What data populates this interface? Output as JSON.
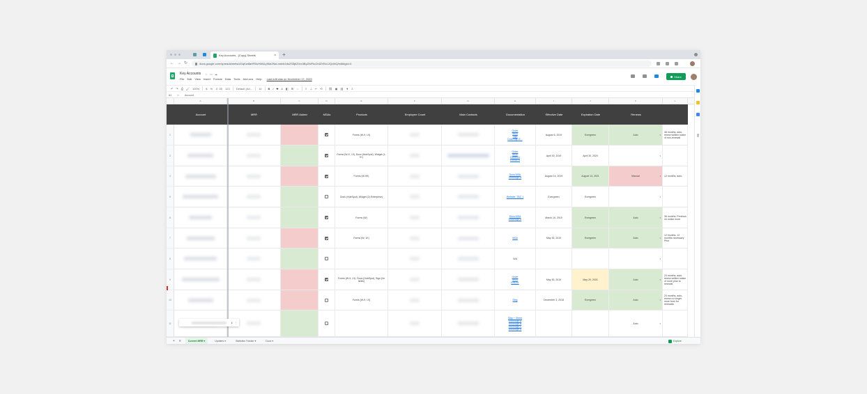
{
  "browser": {
    "tab_title": "Key Accounts - [Copy] Sheets",
    "tab_close": "×",
    "new_tab": "+",
    "url": "docs.google.com/spreadsheets/d/1qKw8aHR0cHM6Ly9kb2NzLmdvb2dsZS5jb20vc3ByZWFkc2hlZXRzL2QvMQ/edit#gid=0"
  },
  "sheets": {
    "title": "Key Accounts",
    "menus": [
      "File",
      "Edit",
      "View",
      "Insert",
      "Format",
      "Data",
      "Tools",
      "Add-ons",
      "Help"
    ],
    "last_edit": "Last edit was on November 17, 2020",
    "share_label": "Share"
  },
  "toolbar": {
    "zoom": "100%",
    "currency": "$",
    "percent": "%",
    "decimals": ".0  .00",
    "format": "123",
    "font": "Default (Ari...",
    "font_size": "10",
    "bold": "B",
    "italic": "I",
    "strike": "S",
    "text_color": "A"
  },
  "formula_bar": {
    "cell_ref": "A1",
    "fx": "fx",
    "value": "Account"
  },
  "columns": [
    "A",
    "B",
    "C",
    "D",
    "E",
    "F",
    "G",
    "H",
    "I",
    "J",
    "K",
    "L"
  ],
  "headers": [
    "Account",
    "MRR",
    "MRR Added",
    "MSAs",
    "Products",
    "Employee Count",
    "Main Contacts",
    "Documentation",
    "Effective Date",
    "Expiration Date",
    "Renews",
    ""
  ],
  "rows": [
    {
      "num": "2",
      "msa": true,
      "products": "Forms (W-9, I-9)",
      "docs": [
        "Order",
        "MSA",
        "Sign",
        "DocuSign E..."
      ],
      "effective": "August 6, 2019",
      "expiration": "Evergreen",
      "renews": "Auto",
      "notes": "36 months, auto-renew written notice of non-renewal"
    },
    {
      "num": "3",
      "msa": true,
      "products": "Forms (W-9, I-9), Docs (HubSpot), Widget (1-9+)",
      "docs": [
        "Order",
        "MSA",
        "Exhibit A",
        "Exhibit B"
      ],
      "effective": "April 30, 2019",
      "expiration": "April 30, 2020",
      "renews": "",
      "notes": ""
    },
    {
      "num": "4",
      "msa": true,
      "products": "Forms (W-9K)",
      "docs": [
        "Docs MSA",
        "DocuSign A"
      ],
      "effective": "August 14, 2019",
      "expiration": "August 13, 2021",
      "renews": "Manual",
      "notes": "12 months, auto-"
    },
    {
      "num": "5",
      "msa": false,
      "products": "Docs (HubSpot), Widget (2) Enterprise)",
      "docs": [
        "Website, TBC 1"
      ],
      "effective": "Evergreen",
      "expiration": "Evergreen",
      "renews": "",
      "notes": ""
    },
    {
      "num": "6",
      "msa": true,
      "products": "Forms (W)",
      "docs": [
        "Docs MSA",
        "DocuSign A"
      ],
      "effective": "March 16, 2019",
      "expiration": "Evergreen",
      "renews": "Auto",
      "notes": "36 months, Previous no notice more"
    },
    {
      "num": "7",
      "msa": true,
      "products": "Forms (W, 1K)",
      "docs": [
        "MSA"
      ],
      "effective": "May 30, 2019",
      "expiration": "Evergreen",
      "renews": "Auto",
      "notes": "12 months, 12 months necessary Prior"
    },
    {
      "num": "8",
      "msa": false,
      "products": "",
      "docs": [
        "N/A"
      ],
      "effective": "",
      "expiration": "",
      "renews": "",
      "notes": ""
    },
    {
      "num": "9",
      "msa": true,
      "products": "Forms (W-9, I-9), Docs (HubSpot), Sign (for limits)",
      "docs": [
        "Order",
        "MSA",
        "Doc A1"
      ],
      "effective": "May 30, 2019",
      "expiration": "May 29, 2020",
      "renews": "Auto",
      "notes": "24 months, auto-renew written notice of more prior to renewal"
    },
    {
      "num": "10",
      "msa": false,
      "products": "Forms (W-9, I-9)",
      "docs": [
        "Blog"
      ],
      "effective": "December 3, 2018",
      "expiration": "Evergreen",
      "renews": "Auto",
      "notes": "24 months, auto-renew no longer more form for renewals"
    },
    {
      "num": "11",
      "msa": false,
      "products": "",
      "docs": [
        "Map + Sheet",
        "DocuSign A",
        "DocuSign B",
        "DocuSign C",
        "DocuSign D"
      ],
      "effective": "",
      "expiration": "",
      "renews": "Auto",
      "notes": ""
    }
  ],
  "popup_action": "ℹ",
  "popup_menu": "⋮",
  "sheet_tabs": {
    "add": "+",
    "all": "≡",
    "tabs": [
      "Current MRR",
      "Updates",
      "Statistics Tracker",
      "Docs"
    ],
    "caret": "▾",
    "explore": "Explore"
  },
  "colors": {
    "header_bg": "#404040",
    "green": "#d9ead3",
    "red": "#f4cccc",
    "yellow": "#fff2cc",
    "sheets_green": "#0f9d58",
    "link": "#1a73e8"
  }
}
